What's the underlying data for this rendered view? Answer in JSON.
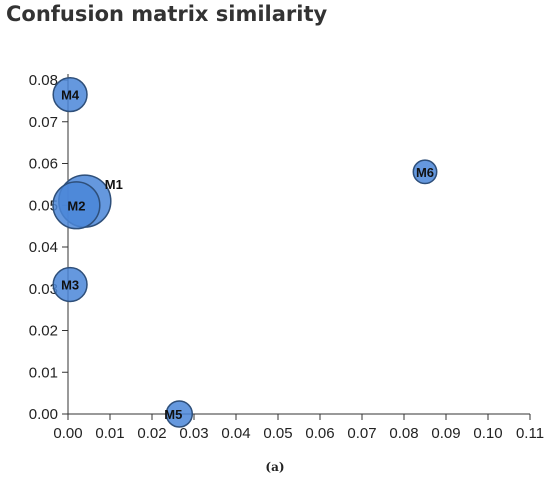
{
  "chart_data": {
    "type": "scatter",
    "title": "Confusion matrix similarity",
    "xlabel": "",
    "ylabel": "",
    "xlim": [
      0,
      0.11
    ],
    "ylim": [
      0,
      0.08
    ],
    "x_ticks": [
      "0.00",
      "0.01",
      "0.02",
      "0.03",
      "0.04",
      "0.05",
      "0.06",
      "0.07",
      "0.08",
      "0.09",
      "0.10",
      "0.11"
    ],
    "y_ticks": [
      "0.00",
      "0.01",
      "0.02",
      "0.03",
      "0.04",
      "0.05",
      "0.06",
      "0.07",
      "0.08"
    ],
    "grid": false,
    "legend": "none",
    "point_color": "#4a86d8",
    "points": [
      {
        "label": "M1",
        "x": 0.004,
        "y": 0.051,
        "size": 2.0
      },
      {
        "label": "M2",
        "x": 0.002,
        "y": 0.05,
        "size": 1.8
      },
      {
        "label": "M3",
        "x": 0.0005,
        "y": 0.031,
        "size": 1.3
      },
      {
        "label": "M4",
        "x": 0.0005,
        "y": 0.0765,
        "size": 1.3
      },
      {
        "label": "M5",
        "x": 0.0265,
        "y": 0.0,
        "size": 1.0
      },
      {
        "label": "M6",
        "x": 0.085,
        "y": 0.058,
        "size": 0.9
      }
    ]
  },
  "caption": "(a)"
}
